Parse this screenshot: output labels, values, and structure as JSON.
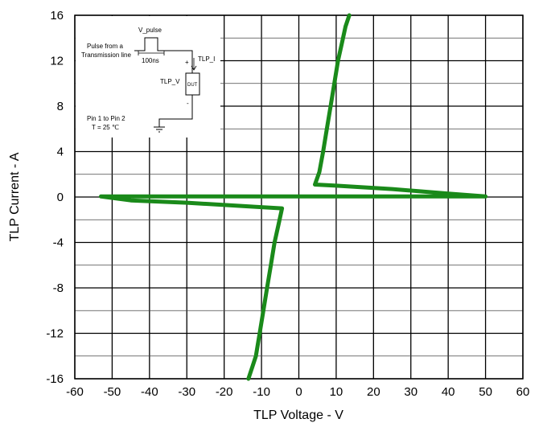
{
  "chart_data": {
    "type": "line",
    "xlabel": "TLP Voltage - V",
    "ylabel": "TLP Current - A",
    "xlim": [
      -60,
      60
    ],
    "ylim": [
      -16,
      16
    ],
    "xticks": [
      -60,
      -50,
      -40,
      -30,
      -20,
      -10,
      0,
      10,
      20,
      30,
      40,
      50,
      60
    ],
    "yticks": [
      -16,
      -12,
      -8,
      -4,
      0,
      4,
      8,
      12,
      16
    ],
    "grid": true,
    "series_color": "#1a8a1a",
    "series": [
      {
        "points": [
          [
            13.5,
            16
          ],
          [
            12.5,
            15
          ],
          [
            11.5,
            13.5
          ],
          [
            10.5,
            12
          ],
          [
            9.5,
            10
          ],
          [
            8.5,
            8
          ],
          [
            7.5,
            6
          ],
          [
            6.5,
            4
          ],
          [
            5.5,
            2.2
          ],
          [
            4.3,
            1.1
          ],
          [
            10,
            1.0
          ],
          [
            25,
            0.7
          ],
          [
            40,
            0.3
          ],
          [
            50,
            0.05
          ],
          [
            20,
            0.05
          ],
          [
            0,
            0.05
          ],
          [
            -30,
            0.05
          ],
          [
            -53,
            0.05
          ],
          [
            -45,
            -0.3
          ],
          [
            -30,
            -0.5
          ],
          [
            -15,
            -0.8
          ],
          [
            -4.5,
            -1.0
          ],
          [
            -5.5,
            -2.5
          ],
          [
            -6.5,
            -4
          ],
          [
            -7.5,
            -6
          ],
          [
            -8.5,
            -8
          ],
          [
            -9.5,
            -10
          ],
          [
            -10.5,
            -12
          ],
          [
            -11.5,
            -14
          ],
          [
            -12.5,
            -15
          ],
          [
            -13.5,
            -16
          ]
        ]
      }
    ]
  },
  "inset": {
    "v_pulse": "V_pulse",
    "source_line1": "Pulse from a",
    "source_line2": "Transmission line",
    "width_label": "100ns",
    "tlp_i": "TLP_I",
    "tlp_v": "TLP_V",
    "dut": "DUT",
    "plus": "+",
    "minus": "-",
    "pins": "Pin 1 to Pin 2",
    "temp": "T = 25 ℃"
  }
}
